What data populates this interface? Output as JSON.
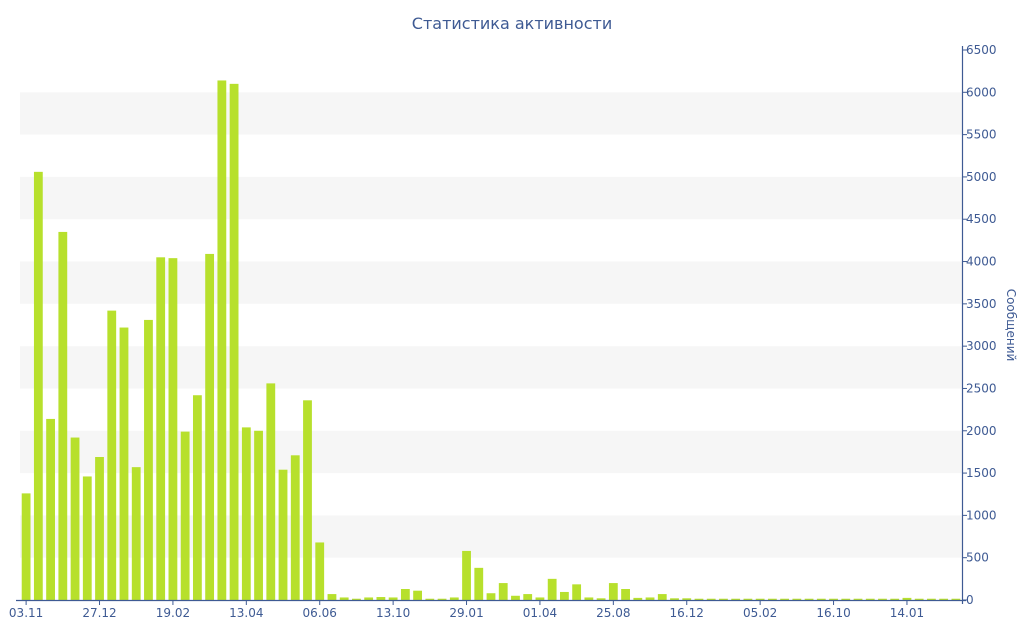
{
  "chart_data": {
    "type": "bar",
    "title": "Статистика активности",
    "xlabel": "",
    "ylabel": "Сообщений",
    "ylim": [
      0,
      6500
    ],
    "y_ticks": [
      0,
      500,
      1000,
      1500,
      2000,
      2500,
      3000,
      3500,
      4000,
      4500,
      5000,
      5500,
      6000,
      6500
    ],
    "y_axis_side": "right",
    "grid": "alternating horizontal bands",
    "bar_color": "#b7e02c",
    "axis_color": "#3e5a93",
    "band_color": "#f6f6f6",
    "x_tick_labels": [
      {
        "label": "03.11",
        "index": 0
      },
      {
        "label": "27.12",
        "index": 6
      },
      {
        "label": "19.02",
        "index": 12
      },
      {
        "label": "13.04",
        "index": 18
      },
      {
        "label": "06.06",
        "index": 24
      },
      {
        "label": "13.10",
        "index": 30
      },
      {
        "label": "29.01",
        "index": 36
      },
      {
        "label": "01.04",
        "index": 42
      },
      {
        "label": "25.08",
        "index": 48
      },
      {
        "label": "16.12",
        "index": 54
      },
      {
        "label": "05.02",
        "index": 60
      },
      {
        "label": "16.10",
        "index": 66
      },
      {
        "label": "14.01",
        "index": 72
      }
    ],
    "values": [
      1260,
      5060,
      2140,
      4350,
      1920,
      1460,
      1690,
      3420,
      3220,
      1570,
      3310,
      4050,
      4040,
      1990,
      2420,
      4090,
      6140,
      6100,
      2040,
      2000,
      2560,
      1540,
      1710,
      2360,
      680,
      70,
      30,
      15,
      30,
      35,
      30,
      130,
      110,
      15,
      15,
      30,
      580,
      380,
      80,
      200,
      50,
      70,
      30,
      250,
      95,
      185,
      30,
      20,
      200,
      130,
      25,
      30,
      70,
      20,
      20,
      15,
      15,
      15,
      15,
      15,
      15,
      15,
      15,
      15,
      15,
      15,
      15,
      15,
      15,
      15,
      15,
      15,
      25,
      15,
      15,
      15,
      15
    ]
  }
}
